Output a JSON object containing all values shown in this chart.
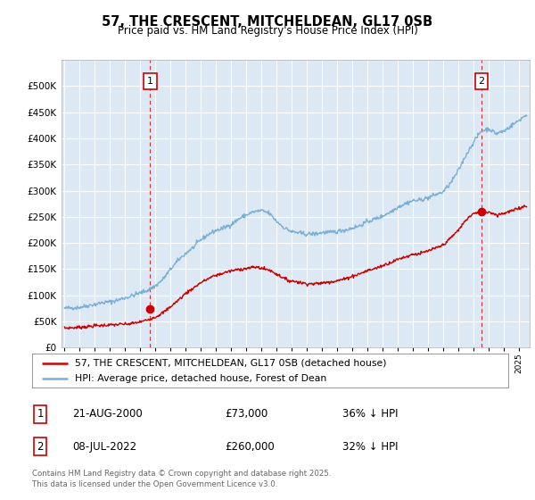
{
  "title": "57, THE CRESCENT, MITCHELDEAN, GL17 0SB",
  "subtitle": "Price paid vs. HM Land Registry's House Price Index (HPI)",
  "legend_line1": "57, THE CRESCENT, MITCHELDEAN, GL17 0SB (detached house)",
  "legend_line2": "HPI: Average price, detached house, Forest of Dean",
  "footnote": "Contains HM Land Registry data © Crown copyright and database right 2025.\nThis data is licensed under the Open Government Licence v3.0.",
  "annotation1_date": "21-AUG-2000",
  "annotation1_price": "£73,000",
  "annotation1_hpi": "36% ↓ HPI",
  "annotation2_date": "08-JUL-2022",
  "annotation2_price": "£260,000",
  "annotation2_hpi": "32% ↓ HPI",
  "hpi_color": "#7bafd4",
  "sale_color": "#cc0000",
  "chart_bg_color": "#dce9f5",
  "background_color": "#ffffff",
  "grid_color": "#ffffff",
  "ylim": [
    0,
    550000
  ],
  "yticks": [
    0,
    50000,
    100000,
    150000,
    200000,
    250000,
    300000,
    350000,
    400000,
    450000,
    500000
  ],
  "xlim_start": 1994.8,
  "xlim_end": 2025.7,
  "sale1_x": 2000.64,
  "sale1_y": 73000,
  "sale2_x": 2022.52,
  "sale2_y": 260000,
  "hpi_key_years": [
    1995,
    1995.5,
    1996,
    1996.5,
    1997,
    1997.5,
    1998,
    1998.5,
    1999,
    1999.5,
    2000,
    2000.5,
    2001,
    2001.5,
    2002,
    2002.5,
    2003,
    2003.5,
    2004,
    2004.5,
    2005,
    2005.5,
    2006,
    2006.5,
    2007,
    2007.5,
    2008,
    2008.5,
    2009,
    2009.5,
    2010,
    2010.5,
    2011,
    2011.5,
    2012,
    2012.5,
    2013,
    2013.5,
    2014,
    2014.5,
    2015,
    2015.5,
    2016,
    2016.5,
    2017,
    2017.5,
    2018,
    2018.5,
    2019,
    2019.5,
    2020,
    2020.5,
    2021,
    2021.5,
    2022,
    2022.5,
    2023,
    2023.5,
    2024,
    2024.5,
    2025,
    2025.5
  ],
  "hpi_key_values": [
    75000,
    76000,
    78000,
    80000,
    83000,
    86000,
    88000,
    91000,
    95000,
    100000,
    105000,
    110000,
    118000,
    130000,
    148000,
    165000,
    178000,
    190000,
    205000,
    215000,
    222000,
    228000,
    235000,
    245000,
    252000,
    258000,
    260000,
    255000,
    240000,
    228000,
    220000,
    218000,
    215000,
    215000,
    217000,
    218000,
    220000,
    222000,
    227000,
    232000,
    240000,
    245000,
    250000,
    258000,
    268000,
    275000,
    280000,
    282000,
    286000,
    292000,
    298000,
    315000,
    340000,
    370000,
    395000,
    415000,
    420000,
    410000,
    415000,
    425000,
    435000,
    445000
  ],
  "sale_key_years": [
    1995,
    1995.5,
    1996,
    1996.5,
    1997,
    1997.5,
    1998,
    1998.5,
    1999,
    1999.5,
    2000,
    2000.5,
    2001,
    2001.5,
    2002,
    2002.5,
    2003,
    2003.5,
    2004,
    2004.5,
    2005,
    2005.5,
    2006,
    2006.5,
    2007,
    2007.5,
    2008,
    2008.5,
    2009,
    2009.5,
    2010,
    2010.5,
    2011,
    2011.5,
    2012,
    2012.5,
    2013,
    2013.5,
    2014,
    2014.5,
    2015,
    2015.5,
    2016,
    2016.5,
    2017,
    2017.5,
    2018,
    2018.5,
    2019,
    2019.5,
    2020,
    2020.5,
    2021,
    2021.5,
    2022,
    2022.5,
    2023,
    2023.5,
    2024,
    2024.5,
    2025,
    2025.5
  ],
  "sale_key_values": [
    37000,
    38000,
    39000,
    40000,
    42000,
    43000,
    44000,
    45000,
    46000,
    48000,
    50000,
    54000,
    60000,
    68000,
    80000,
    92000,
    105000,
    115000,
    125000,
    132000,
    138000,
    142000,
    145000,
    148000,
    150000,
    152000,
    150000,
    148000,
    140000,
    132000,
    128000,
    125000,
    122000,
    122000,
    123000,
    125000,
    128000,
    132000,
    137000,
    142000,
    148000,
    152000,
    157000,
    162000,
    168000,
    173000,
    178000,
    180000,
    185000,
    190000,
    197000,
    210000,
    225000,
    245000,
    258000,
    260000,
    262000,
    255000,
    258000,
    262000,
    268000,
    272000
  ]
}
